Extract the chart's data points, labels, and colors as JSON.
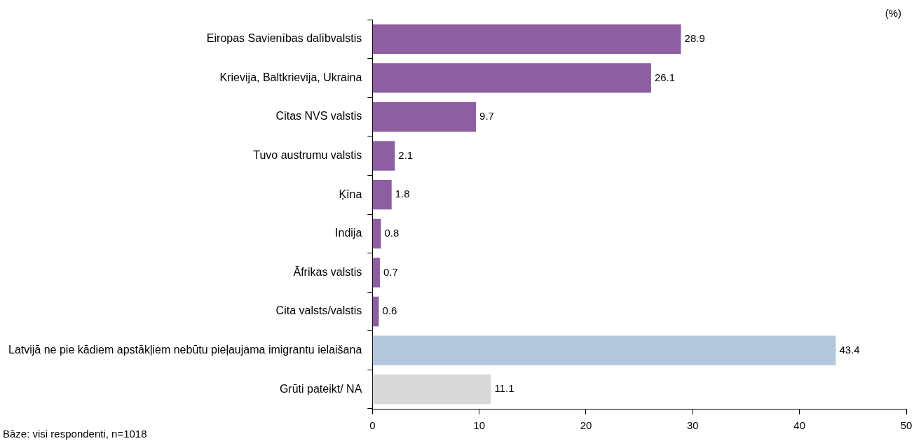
{
  "chart_data": {
    "type": "bar",
    "orientation": "horizontal",
    "categories": [
      "Eiropas Savienības dalībvalstis",
      "Krievija, Baltkrievija, Ukraina",
      "Citas NVS valstis",
      "Tuvo austrumu valstis",
      "Ķīna",
      "Indija",
      "Āfrikas valstis",
      "Cita valsts/valstis",
      "Latvijā ne pie kādiem apstākļiem nebūtu pieļaujama imigrantu ielaišana",
      "Grūti pateikt/ NA"
    ],
    "values": [
      28.9,
      26.1,
      9.7,
      2.1,
      1.8,
      0.8,
      0.7,
      0.6,
      43.4,
      11.1
    ],
    "colors": [
      "#8e5ea2",
      "#8e5ea2",
      "#8e5ea2",
      "#8e5ea2",
      "#8e5ea2",
      "#8e5ea2",
      "#8e5ea2",
      "#8e5ea2",
      "#b4c7dd",
      "#d9d9d9"
    ],
    "xlim": [
      0,
      50
    ],
    "xticks": [
      0,
      10,
      20,
      30,
      40,
      50
    ],
    "grid": false,
    "legend": false,
    "data_labels": true,
    "annotations": [
      "(%)",
      "Bāze: visi respondenti, n=1018"
    ]
  }
}
